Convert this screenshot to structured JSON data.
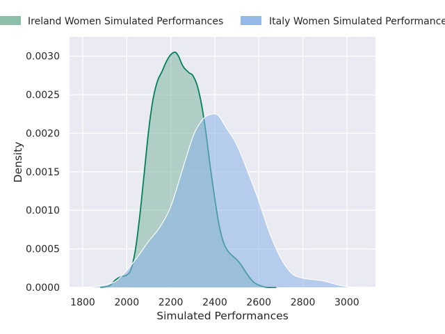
{
  "chart_data": {
    "type": "area",
    "xlabel": "Simulated Performances",
    "ylabel": "Density",
    "xlim": [
      1740,
      3130
    ],
    "ylim": [
      0,
      0.00325
    ],
    "x_ticks": [
      1800,
      2000,
      2200,
      2400,
      2600,
      2800,
      3000
    ],
    "x_tick_labels": [
      "1800",
      "2000",
      "2200",
      "2400",
      "2600",
      "2800",
      "3000"
    ],
    "y_ticks": [
      0,
      0.0005,
      0.001,
      0.0015,
      0.002,
      0.0025,
      0.003
    ],
    "y_tick_labels": [
      "0.0000",
      "0.0005",
      "0.0010",
      "0.0015",
      "0.0020",
      "0.0025",
      "0.0030"
    ],
    "grid": true,
    "legend_position": "top",
    "series": [
      {
        "name": "Ireland Women Simulated Performances",
        "fill_color": "#7fb7a0",
        "line_color": "#00805a",
        "x": [
          1880,
          1920,
          1950,
          1975,
          2000,
          2020,
          2040,
          2060,
          2080,
          2100,
          2120,
          2140,
          2160,
          2180,
          2200,
          2220,
          2235,
          2250,
          2260,
          2270,
          2285,
          2300,
          2320,
          2340,
          2360,
          2380,
          2400,
          2420,
          2440,
          2460,
          2480,
          2500,
          2520,
          2540,
          2560,
          2580,
          2600,
          2620,
          2640,
          2660,
          2680
        ],
        "y": [
          0.0,
          2e-05,
          0.0001,
          0.00014,
          0.00016,
          0.00024,
          0.0005,
          0.00095,
          0.0015,
          0.00205,
          0.00245,
          0.00268,
          0.0028,
          0.00293,
          0.00302,
          0.00305,
          0.003,
          0.0029,
          0.00285,
          0.00282,
          0.00278,
          0.00275,
          0.00262,
          0.00237,
          0.002,
          0.00155,
          0.00115,
          0.0008,
          0.00058,
          0.00047,
          0.00041,
          0.00036,
          0.00029,
          0.0002,
          0.00012,
          6e-05,
          3e-05,
          1e-05,
          0.0,
          0.0,
          0.0
        ]
      },
      {
        "name": "Italy Women Simulated Performances",
        "fill_color": "#8ab3e8",
        "line_color": "#ffffff",
        "x": [
          1800,
          1850,
          1900,
          1950,
          2000,
          2050,
          2100,
          2150,
          2200,
          2250,
          2300,
          2330,
          2360,
          2390,
          2400,
          2420,
          2450,
          2500,
          2550,
          2600,
          2650,
          2700,
          2750,
          2800,
          2850,
          2900,
          2950,
          3000,
          3050,
          3080
        ],
        "y": [
          0.0,
          1e-05,
          3e-05,
          8e-05,
          0.00022,
          0.0004,
          0.0006,
          0.00078,
          0.00105,
          0.0015,
          0.00195,
          0.00212,
          0.00222,
          0.00225,
          0.00225,
          0.00222,
          0.00208,
          0.00185,
          0.0015,
          0.00112,
          0.0007,
          0.00038,
          0.00018,
          0.00012,
          0.0001,
          8e-05,
          4e-05,
          1e-05,
          0.0,
          0.0
        ]
      }
    ]
  }
}
